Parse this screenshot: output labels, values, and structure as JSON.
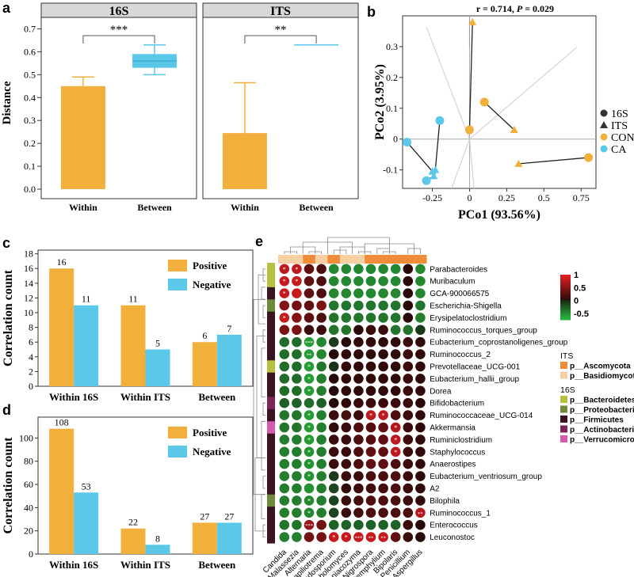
{
  "colors": {
    "orange": "#F1B03C",
    "blue": "#5BC8EA",
    "dark": "#3a3a3a"
  },
  "chart_data": [
    {
      "id": "a",
      "type": "bar",
      "panel_label": "a",
      "ylabel": "Distance",
      "ylim": [
        0,
        0.75
      ],
      "yticks": [
        0.0,
        0.1,
        0.2,
        0.3,
        0.4,
        0.5,
        0.6,
        0.7
      ],
      "ytick_labels": [
        "0.0",
        "0.1",
        "0.2",
        "0.3",
        "0.4",
        "0.5",
        "0.6",
        "0.7"
      ],
      "facets": [
        {
          "title": "16S",
          "categories": [
            "Within",
            "Between"
          ],
          "values": [
            0.45,
            0.56
          ],
          "err_upper": [
            0.49,
            0.63
          ],
          "box_low": [
            null,
            0.53
          ],
          "box_high": [
            null,
            0.59
          ],
          "whisker_low": [
            null,
            0.5
          ],
          "significance": "***"
        },
        {
          "title": "ITS",
          "categories": [
            "Within",
            "Between"
          ],
          "values": [
            0.245,
            0.63
          ],
          "err_upper": [
            0.465,
            0.63
          ],
          "box_low": [
            null,
            null
          ],
          "box_high": [
            null,
            null
          ],
          "whisker_low": [
            null,
            null
          ],
          "significance": "**"
        }
      ]
    },
    {
      "id": "b",
      "type": "scatter",
      "panel_label": "b",
      "title": "r = 0.714, P = 0.029",
      "title_parts": [
        "r = 0.714, ",
        "P",
        " = 0.029"
      ],
      "xlabel": "PCo1 (93.56%)",
      "ylabel": "PCo2 (3.95%)",
      "xlim": [
        -0.45,
        0.85
      ],
      "ylim": [
        -0.16,
        0.4
      ],
      "xticks": [
        -0.25,
        0,
        0.25,
        0.5,
        0.75
      ],
      "xtick_labels": [
        "-0.25",
        "0",
        "0.25",
        "0.5",
        "0.75"
      ],
      "yticks": [
        -0.1,
        0,
        0.1,
        0.2,
        0.3
      ],
      "ytick_labels": [
        "-0.1",
        "0",
        "0.1",
        "0.2",
        "0.3"
      ],
      "legend": [
        {
          "label": "16S",
          "shape": "circle",
          "color": "#333333"
        },
        {
          "label": "ITS",
          "shape": "triangle",
          "color": "#333333"
        },
        {
          "label": "CON",
          "shape": "circle",
          "color": "#F1B03C"
        },
        {
          "label": "CA",
          "shape": "circle",
          "color": "#5BC8EA"
        }
      ],
      "pairs": [
        {
          "group": "CON",
          "s16": [
            0.0,
            0.03
          ],
          "its": [
            0.02,
            0.38
          ]
        },
        {
          "group": "CON",
          "s16": [
            0.1,
            0.12
          ],
          "its": [
            0.3,
            0.03
          ]
        },
        {
          "group": "CON",
          "s16": [
            0.8,
            -0.06
          ],
          "its": [
            0.33,
            -0.08
          ]
        },
        {
          "group": "CA",
          "s16": [
            -0.2,
            0.06
          ],
          "its": [
            -0.23,
            -0.1
          ]
        },
        {
          "group": "CA",
          "s16": [
            -0.42,
            -0.01
          ],
          "its": [
            -0.25,
            -0.105
          ]
        },
        {
          "group": "CA",
          "s16": [
            -0.29,
            -0.135
          ],
          "its": [
            -0.24,
            -0.12
          ]
        }
      ]
    },
    {
      "id": "c",
      "type": "bar",
      "panel_label": "c",
      "ylabel": "Correlation count",
      "ylim": [
        0,
        18.5
      ],
      "yticks": [
        0,
        2,
        4,
        6,
        8,
        10,
        12,
        14,
        16,
        18
      ],
      "ytick_labels": [
        "0",
        "2",
        "4",
        "6",
        "8",
        "10",
        "12",
        "14",
        "16",
        "18"
      ],
      "categories": [
        "Within 16S",
        "Within ITS",
        "Between"
      ],
      "series": [
        {
          "name": "Positive",
          "values": [
            16,
            11,
            6
          ],
          "labels": [
            "16",
            "11",
            "6"
          ]
        },
        {
          "name": "Negative",
          "values": [
            11,
            5,
            7
          ],
          "labels": [
            "11",
            "5",
            "7"
          ]
        }
      ]
    },
    {
      "id": "d",
      "type": "bar",
      "panel_label": "d",
      "ylabel": "Correlation count",
      "ylim": [
        0,
        118
      ],
      "yticks": [
        0,
        20,
        40,
        60,
        80,
        100
      ],
      "ytick_labels": [
        "0",
        "20",
        "40",
        "60",
        "80",
        "100"
      ],
      "categories": [
        "Within 16S",
        "Within ITS",
        "Between"
      ],
      "series": [
        {
          "name": "Positive",
          "values": [
            108,
            22,
            27
          ],
          "labels": [
            "108",
            "22",
            "27"
          ]
        },
        {
          "name": "Negative",
          "values": [
            53,
            8,
            27
          ],
          "labels": [
            "53",
            "8",
            "27"
          ]
        }
      ]
    },
    {
      "id": "e",
      "type": "heatmap",
      "panel_label": "e",
      "rows": [
        "Parabacteroides",
        "Muribaculum",
        "GCA-900066575",
        "Escherichia-Shigella",
        "Erysipelatoclostridium",
        "Ruminococcus_torques_group",
        "Eubacterium_coprostanoligenes_group",
        "Ruminococcus_2",
        "Prevotellaceae_UCG-001",
        "Eubacterium_hallii_group",
        "Dorea",
        "Bifidobacterium",
        "Ruminococcaceae_UCG-014",
        "Akkermansia",
        "Ruminiclostridium",
        "Staphylococcus",
        "Anaerostipes",
        "Eubacterium_ventriosum_group",
        "A2",
        "Bilophila",
        "Ruminococcus_1",
        "Enterococcus",
        "Leuconostoc"
      ],
      "columns": [
        "Candida",
        "Malassezia",
        "Alternaria",
        "Papiliotrema",
        "Cladosporium",
        "Sporobolomyces",
        "Vishniacozyma",
        "Nigrospora",
        "Stemphylium",
        "Bipolaris",
        "Penicillium",
        "Aspergillus"
      ],
      "column_phylum": [
        "Basidiomycota",
        "Basidiomycota",
        "Ascomycota",
        "Basidiomycota",
        "Ascomycota",
        "Basidiomycota",
        "Basidiomycota",
        "Ascomycota",
        "Ascomycota",
        "Ascomycota",
        "Ascomycota",
        "Ascomycota"
      ],
      "row_phylum": [
        "Bacteroidetes",
        "Bacteroidetes",
        "Firmicutes",
        "Proteobacteria",
        "Firmicutes",
        "Firmicutes",
        "Firmicutes",
        "Firmicutes",
        "Bacteroidetes",
        "Firmicutes",
        "Firmicutes",
        "Actinobacteria",
        "Firmicutes",
        "Verrucomicrobia",
        "Firmicutes",
        "Firmicutes",
        "Firmicutes",
        "Firmicutes",
        "Firmicutes",
        "Proteobacteria",
        "Firmicutes",
        "Firmicutes",
        "Firmicutes"
      ],
      "values": [
        [
          0.8,
          0.8,
          0.3,
          0.2,
          -0.5,
          -0.5,
          -0.5,
          -0.5,
          -0.5,
          -0.5,
          0.0,
          -0.5
        ],
        [
          0.85,
          0.85,
          0.3,
          0.2,
          -0.5,
          -0.5,
          -0.5,
          -0.5,
          -0.5,
          -0.5,
          0.0,
          -0.5
        ],
        [
          0.85,
          0.85,
          0.3,
          0.2,
          -0.5,
          -0.5,
          -0.5,
          -0.5,
          -0.5,
          -0.5,
          0.0,
          -0.5
        ],
        [
          0.5,
          0.4,
          0.3,
          0.45,
          -0.4,
          -0.4,
          -0.4,
          -0.4,
          -0.4,
          -0.4,
          0.0,
          -0.4
        ],
        [
          0.85,
          0.5,
          0.3,
          0.2,
          -0.4,
          -0.4,
          -0.4,
          -0.4,
          -0.4,
          -0.4,
          0.0,
          -0.45
        ],
        [
          0.45,
          0.45,
          0.1,
          0.1,
          -0.4,
          -0.4,
          0.0,
          0.1,
          0.1,
          -0.4,
          -0.4,
          -0.1
        ],
        [
          -0.35,
          -0.35,
          -0.6,
          -0.5,
          -0.1,
          0.0,
          0.05,
          0.05,
          0.05,
          0.05,
          0.1,
          0.05
        ],
        [
          -0.35,
          -0.35,
          -0.6,
          -0.5,
          0.0,
          0.05,
          0.05,
          0.05,
          0.05,
          0.05,
          0.1,
          0.05
        ],
        [
          -0.35,
          -0.35,
          -0.6,
          -0.4,
          -0.05,
          0.05,
          0.05,
          0.05,
          0.05,
          0.05,
          0.1,
          0.05
        ],
        [
          -0.35,
          -0.35,
          -0.6,
          -0.45,
          0.0,
          0.05,
          0.05,
          0.05,
          0.05,
          0.05,
          0.1,
          0.05
        ],
        [
          -0.35,
          -0.35,
          -0.6,
          -0.45,
          0.0,
          0.05,
          0.05,
          0.05,
          0.05,
          0.05,
          0.1,
          0.05
        ],
        [
          -0.3,
          -0.3,
          -0.35,
          -0.3,
          0.0,
          0.05,
          0.1,
          0.1,
          0.1,
          0.1,
          0.1,
          0.0
        ],
        [
          -0.4,
          -0.4,
          -0.6,
          -0.45,
          0.1,
          0.15,
          0.1,
          0.8,
          0.8,
          0.2,
          0.1,
          0.05
        ],
        [
          -0.4,
          -0.4,
          -0.6,
          -0.45,
          0.05,
          0.1,
          0.2,
          0.25,
          0.3,
          0.75,
          0.1,
          0.05
        ],
        [
          -0.45,
          -0.45,
          -0.6,
          -0.45,
          0.1,
          0.1,
          0.2,
          0.25,
          0.3,
          0.8,
          0.1,
          0.05
        ],
        [
          -0.45,
          -0.45,
          -0.55,
          -0.45,
          0.1,
          0.1,
          0.2,
          0.3,
          0.3,
          0.8,
          0.1,
          0.05
        ],
        [
          -0.45,
          -0.45,
          -0.55,
          -0.45,
          0.1,
          0.1,
          0.2,
          0.3,
          0.3,
          0.2,
          0.1,
          0.05
        ],
        [
          -0.45,
          -0.45,
          -0.55,
          -0.45,
          -0.1,
          0.1,
          0.1,
          0.2,
          0.2,
          0.2,
          0.1,
          0.05
        ],
        [
          -0.45,
          -0.45,
          -0.55,
          -0.45,
          -0.15,
          0.05,
          0.1,
          0.15,
          0.15,
          0.2,
          0.1,
          0.05
        ],
        [
          -0.45,
          -0.45,
          -0.5,
          -0.45,
          -0.15,
          0.1,
          0.15,
          0.2,
          0.2,
          0.2,
          0.1,
          0.05
        ],
        [
          -0.45,
          -0.45,
          -0.5,
          -0.45,
          -0.15,
          0.1,
          0.15,
          0.2,
          0.2,
          0.2,
          0.2,
          0.75
        ],
        [
          -0.4,
          -0.4,
          0.6,
          0.4,
          -0.3,
          -0.3,
          -0.3,
          -0.3,
          -0.3,
          -0.3,
          0.1,
          0.0
        ],
        [
          -0.45,
          -0.45,
          0.4,
          0.4,
          0.85,
          0.85,
          0.85,
          0.85,
          0.85,
          0.3,
          0.1,
          0.0
        ]
      ],
      "stars": [
        [
          "*",
          "*",
          "",
          "",
          "",
          "",
          "",
          "",
          "",
          "",
          "",
          ""
        ],
        [
          "*",
          "*",
          "",
          "",
          "",
          "",
          "",
          "",
          "",
          "",
          "",
          ""
        ],
        [
          "*",
          "",
          "",
          "",
          "",
          "",
          "",
          "",
          "",
          "",
          "",
          ""
        ],
        [
          "",
          "",
          "",
          "",
          "",
          "",
          "",
          "",
          "",
          "",
          "",
          ""
        ],
        [
          "*",
          "",
          "",
          "",
          "",
          "",
          "",
          "",
          "",
          "",
          "",
          ""
        ],
        [
          "",
          "",
          "",
          "",
          "",
          "",
          "",
          "",
          "",
          "",
          "",
          ""
        ],
        [
          "",
          "",
          "***",
          "",
          "",
          "",
          "",
          "",
          "",
          "",
          "",
          ""
        ],
        [
          "",
          "",
          "**",
          "",
          "",
          "",
          "",
          "",
          "",
          "",
          "",
          ""
        ],
        [
          "",
          "",
          "*",
          "",
          "",
          "",
          "",
          "",
          "",
          "",
          "",
          ""
        ],
        [
          "",
          "",
          "*",
          "",
          "",
          "",
          "",
          "",
          "",
          "",
          "",
          ""
        ],
        [
          "",
          "",
          "*",
          "",
          "",
          "",
          "",
          "",
          "",
          "",
          "",
          ""
        ],
        [
          "",
          "",
          "",
          "",
          "",
          "",
          "",
          "",
          "",
          "",
          "",
          ""
        ],
        [
          "",
          "",
          "*",
          "",
          "",
          "",
          "",
          "*",
          "*",
          "",
          "",
          ""
        ],
        [
          "",
          "",
          "*",
          "",
          "",
          "",
          "",
          "",
          "",
          "*",
          "",
          ""
        ],
        [
          "",
          "",
          "*",
          "",
          "",
          "",
          "",
          "",
          "",
          "*",
          "",
          ""
        ],
        [
          "",
          "",
          "*",
          "",
          "",
          "",
          "",
          "",
          "",
          "*",
          "",
          ""
        ],
        [
          "",
          "",
          "*",
          "",
          "",
          "",
          "",
          "",
          "",
          "",
          "",
          ""
        ],
        [
          "",
          "",
          "*",
          "",
          "",
          "",
          "",
          "",
          "",
          "",
          "",
          ""
        ],
        [
          "",
          "",
          "",
          "",
          "",
          "",
          "",
          "",
          "",
          "",
          "",
          ""
        ],
        [
          "",
          "",
          "*",
          "",
          "",
          "",
          "",
          "",
          "",
          "",
          "",
          ""
        ],
        [
          "",
          "",
          "*",
          "",
          "",
          "",
          "",
          "",
          "",
          "",
          "",
          "**"
        ],
        [
          "",
          "",
          "***",
          "",
          "",
          "",
          "",
          "",
          "",
          "",
          "",
          ""
        ],
        [
          "",
          "",
          "",
          "",
          "*",
          "*",
          "***",
          "**",
          "**",
          "",
          "",
          ""
        ]
      ],
      "colorbar": {
        "ticks": [
          1,
          0.5,
          0,
          -0.5
        ],
        "tick_labels": [
          "1",
          "0.5",
          "0",
          "-0.5"
        ],
        "range": [
          -0.75,
          1
        ]
      },
      "legend_groups": [
        {
          "title": "ITS",
          "items": [
            {
              "label": "p__Ascomycota",
              "color": "#F08B3A"
            },
            {
              "label": "p__Basidiomycota",
              "color": "#F6CFA2"
            }
          ]
        },
        {
          "title": "16S",
          "items": [
            {
              "label": "p__Bacteroidetes",
              "color": "#B5C13F"
            },
            {
              "label": "p__Proteobacteria",
              "color": "#6E8A3A"
            },
            {
              "label": "p__Firmicutes",
              "color": "#3B1423"
            },
            {
              "label": "p__Actinobacteria",
              "color": "#7E2456"
            },
            {
              "label": "p__Verrucomicrobia",
              "color": "#D45AAE"
            }
          ]
        }
      ]
    }
  ]
}
